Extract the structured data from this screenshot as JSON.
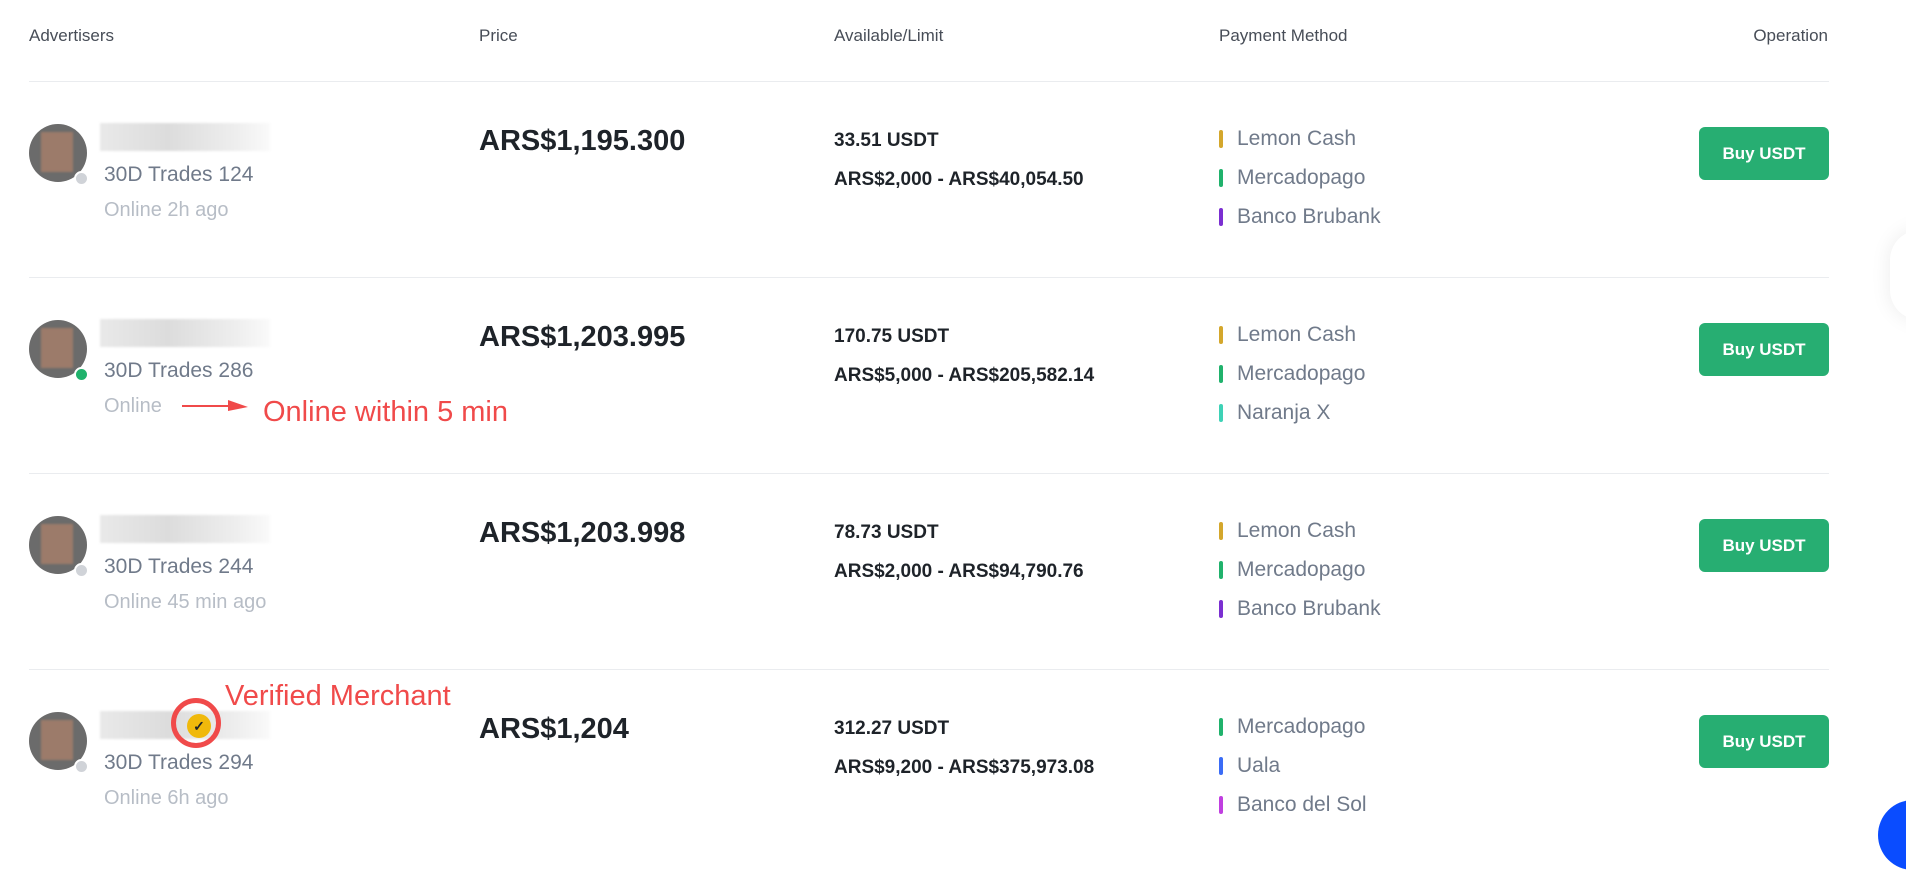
{
  "columns": {
    "advertisers": "Advertisers",
    "price": "Price",
    "available_limit": "Available/Limit",
    "payment_method": "Payment Method",
    "operation": "Operation"
  },
  "rows": [
    {
      "trades": "30D Trades 124",
      "online": "Online 2h ago",
      "online_status": "offline",
      "price": "ARS$1,195.300",
      "available": "33.51 USDT",
      "limit": "ARS$2,000 - ARS$40,054.50",
      "payments": [
        {
          "name": "Lemon Cash",
          "color": "#d4a72c"
        },
        {
          "name": "Mercadopago",
          "color": "#20b26c"
        },
        {
          "name": "Banco Brubank",
          "color": "#7b2fd1"
        }
      ],
      "button": "Buy USDT"
    },
    {
      "trades": "30D Trades 286",
      "online": "Online",
      "online_status": "online",
      "price": "ARS$1,203.995",
      "available": "170.75 USDT",
      "limit": "ARS$5,000 - ARS$205,582.14",
      "payments": [
        {
          "name": "Lemon Cash",
          "color": "#d4a72c"
        },
        {
          "name": "Mercadopago",
          "color": "#20b26c"
        },
        {
          "name": "Naranja X",
          "color": "#3ed2b6"
        }
      ],
      "button": "Buy USDT"
    },
    {
      "trades": "30D Trades 244",
      "online": "Online 45 min ago",
      "online_status": "offline",
      "price": "ARS$1,203.998",
      "available": "78.73 USDT",
      "limit": "ARS$2,000 - ARS$94,790.76",
      "payments": [
        {
          "name": "Lemon Cash",
          "color": "#d4a72c"
        },
        {
          "name": "Mercadopago",
          "color": "#20b26c"
        },
        {
          "name": "Banco Brubank",
          "color": "#7b2fd1"
        }
      ],
      "button": "Buy USDT"
    },
    {
      "trades": "30D Trades 294",
      "online": "Online 6h ago",
      "online_status": "offline",
      "price": "ARS$1,204",
      "available": "312.27 USDT",
      "limit": "ARS$9,200 - ARS$375,973.08",
      "payments": [
        {
          "name": "Mercadopago",
          "color": "#20b26c"
        },
        {
          "name": "Uala",
          "color": "#3b6cf6"
        },
        {
          "name": "Banco del Sol",
          "color": "#c03fe0"
        }
      ],
      "button": "Buy USDT",
      "verified_badge": "✓"
    }
  ],
  "annotations": {
    "online_note": "Online within 5 min",
    "verified_note": "Verified Merchant"
  },
  "colors": {
    "buy_button": "#27ae72",
    "annotation": "#f04a4a"
  }
}
